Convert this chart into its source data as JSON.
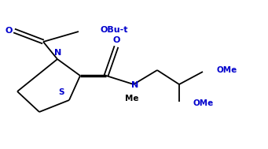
{
  "bg_color": "#ffffff",
  "bond_color": "#000000",
  "atom_colors": {
    "O": "#0000cd",
    "N": "#0000cd",
    "S": "#0000cd",
    "C": "#000000"
  },
  "font_size": 7.5,
  "line_width": 1.3,
  "figsize": [
    3.41,
    1.89
  ],
  "dpi": 100,
  "xlim": [
    0,
    341
  ],
  "ylim": [
    0,
    189
  ]
}
